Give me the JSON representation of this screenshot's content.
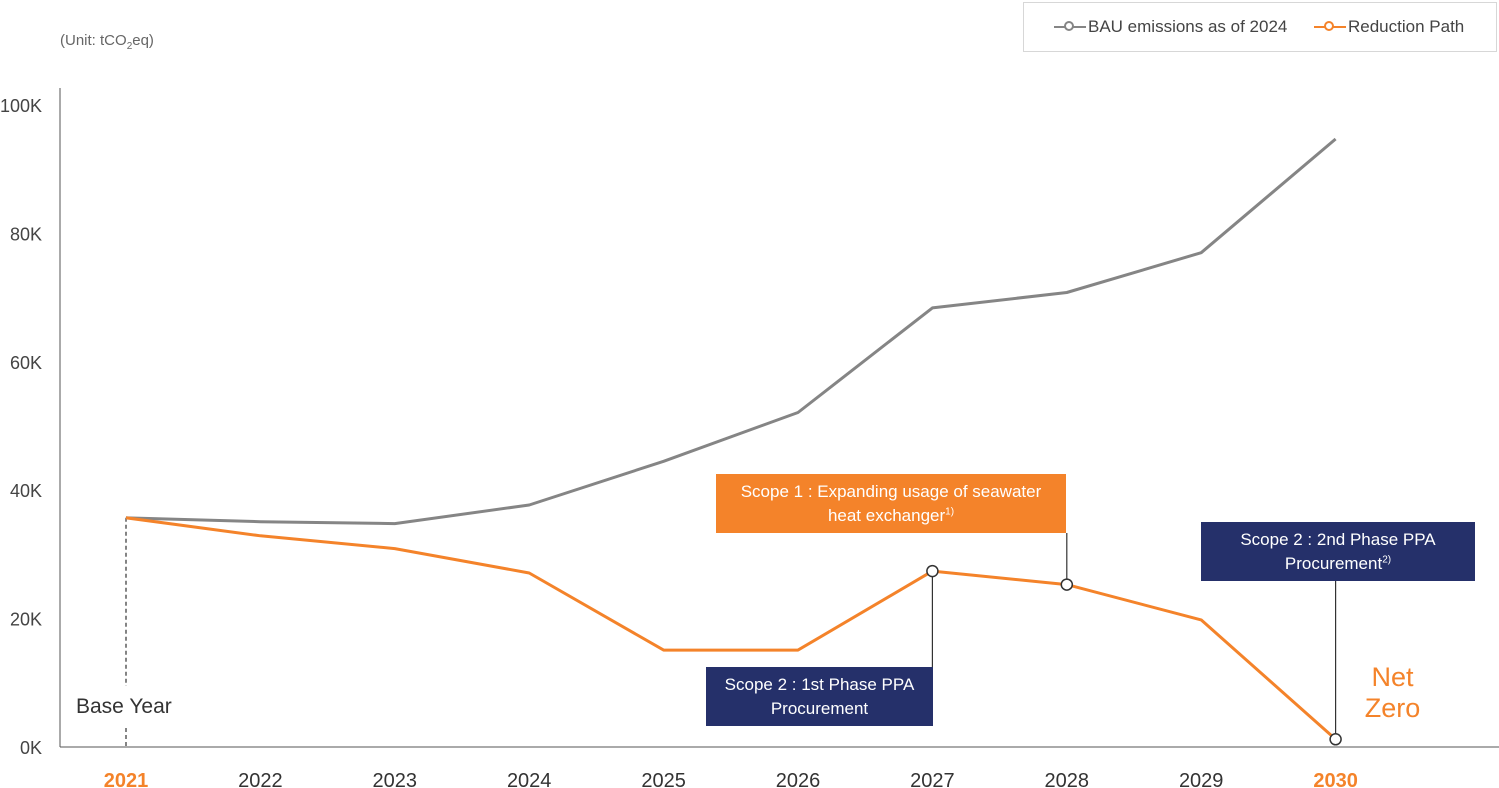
{
  "unit": {
    "prefix": "(Unit: tCO",
    "sub": "2",
    "suffix": "eq)"
  },
  "legend": [
    {
      "name": "BAU emissions as of 2024",
      "color": "#858585"
    },
    {
      "name": "Reduction Path",
      "color": "#f4832a"
    }
  ],
  "chart_data": {
    "type": "line",
    "categories": [
      "2021",
      "2022",
      "2023",
      "2024",
      "2025",
      "2026",
      "2027",
      "2028",
      "2029",
      "2030"
    ],
    "highlight_categories": [
      "2021",
      "2030"
    ],
    "highlight_color": "#f4832a",
    "y_ticks": [
      0,
      20000,
      40000,
      60000,
      80000,
      100000
    ],
    "y_tick_labels": [
      "0K",
      "20K",
      "40K",
      "60K",
      "80K",
      "100K"
    ],
    "ylim": [
      0,
      100000
    ],
    "series": [
      {
        "name": "BAU emissions as of 2024",
        "color": "#858585",
        "values": [
          35700,
          35100,
          34800,
          37700,
          44500,
          52100,
          68400,
          70800,
          77000,
          94700
        ]
      },
      {
        "name": "Reduction Path",
        "color": "#f4832a",
        "values": [
          35700,
          32900,
          30900,
          27100,
          15100,
          15100,
          27400,
          25300,
          19800,
          1200
        ]
      }
    ],
    "markers": [
      {
        "series": 1,
        "category": "2027"
      },
      {
        "series": 1,
        "category": "2028"
      },
      {
        "series": 1,
        "category": "2030"
      }
    ]
  },
  "annotations": {
    "scope1": {
      "text": "Scope 1 : Expanding usage of seawater",
      "line2": "heat exchanger",
      "sup": "1)"
    },
    "scope2_first": {
      "text": "Scope 2 : 1st Phase PPA",
      "line2": "Procurement"
    },
    "scope2_second": {
      "text": "Scope 2 : 2nd Phase PPA",
      "line2": "Procurement",
      "sup": "2)"
    },
    "net_zero": {
      "line1": "Net",
      "line2": "Zero"
    },
    "base_year": "Base Year"
  }
}
